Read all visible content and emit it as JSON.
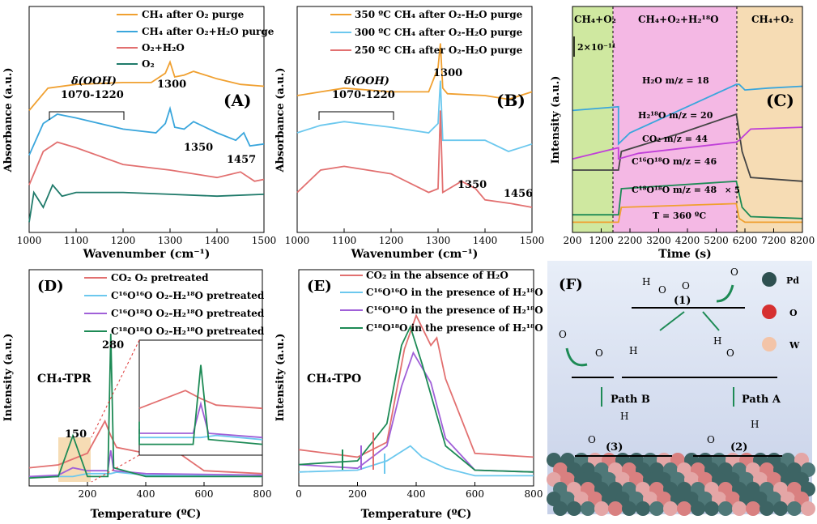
{
  "colors": {
    "orange": "#f0a030",
    "blue": "#3aa6dc",
    "lightblue": "#6cc8ee",
    "red": "#e27070",
    "teal": "#1f7a6a",
    "purple": "#a060d8",
    "green": "#1d8a55",
    "magenta": "#c040d8",
    "dark": "#444444",
    "gasGreen": "#cfe8a0",
    "gasPink": "#f4b8e4",
    "gasTan": "#f6dcb4"
  },
  "panels": {
    "A": {
      "label": "(A)",
      "xlabel": "Wavenumber (cm⁻¹)",
      "ylabel": "Absorbance (a.u.)",
      "xticks": [
        "1000",
        "1100",
        "1200",
        "1300",
        "1400",
        "1500"
      ],
      "legend": [
        "CH₄ after O₂ purge",
        "CH₄ after O₂+H₂O purge",
        "O₂+H₂O",
        "O₂"
      ],
      "annot_delta": "δ(OOH)",
      "annot_range": "1070-1220",
      "peaks": [
        "1300",
        "1350",
        "1457"
      ]
    },
    "B": {
      "label": "(B)",
      "xlabel": "Wavenumber (cm⁻¹)",
      "ylabel": "Absorbance (a.u.)",
      "xticks": [
        "1000",
        "1100",
        "1200",
        "1300",
        "1400",
        "1500"
      ],
      "legend": [
        "350 ºC CH₄ after O₂-H₂O purge",
        "300 ºC CH₄ after O₂-H₂O purge",
        "250 ºC CH₄ after O₂-H₂O purge"
      ],
      "annot_delta": "δ(OOH)",
      "annot_range": "1070-1220",
      "peaks": [
        "1300",
        "1350",
        "1456"
      ]
    },
    "C": {
      "label": "(C)",
      "xlabel": "Time (s)",
      "ylabel": "Intensity (a.u.)",
      "xticks": [
        "200",
        "1200",
        "2200",
        "3200",
        "4200",
        "5200",
        "6200",
        "7200",
        "8200"
      ],
      "regions": [
        "CH₄+O₂",
        "CH₄+O₂+H₂¹⁸O",
        "CH₄+O₂"
      ],
      "scalebar": "2×10⁻¹¹",
      "traces": [
        "H₂O m/z = 18",
        "H₂¹⁸O m/z = 20",
        "CO₂ m/z = 44",
        "C¹⁶O¹⁸O m/z = 46",
        "C¹⁸O¹⁸O m/z = 48"
      ],
      "multiplier": "× 5",
      "temperature": "T = 360 ºC"
    },
    "D": {
      "label": "(D)",
      "xlabel": "Temperature (ºC)",
      "ylabel": "Intensity (a.u.)",
      "xticks": [
        "200",
        "400",
        "600",
        "800"
      ],
      "legend": [
        "CO₂ O₂ pretreated",
        "C¹⁶O¹⁶O O₂-H₂¹⁸O pretreated",
        "C¹⁶O¹⁸O O₂-H₂¹⁸O pretreated",
        "C¹⁸O¹⁸O O₂-H₂¹⁸O pretreated"
      ],
      "title": "CH₄-TPR",
      "peaks": [
        "280",
        "150"
      ]
    },
    "E": {
      "label": "(E)",
      "xlabel": "Temperature (ºC)",
      "ylabel": "Intensity (a.u.)",
      "xticks": [
        "0",
        "200",
        "400",
        "600",
        "800"
      ],
      "legend": [
        "CO₂ in the absence of H₂O",
        "C¹⁶O¹⁶O in the presence of H₂¹⁸O",
        "C¹⁶O¹⁸O in the presence of H₂¹⁸O",
        "C¹⁸O¹⁸O in the presence of H₂¹⁸O"
      ],
      "title": "CH₄-TPO"
    },
    "F": {
      "label": "(F)",
      "legend": [
        "Pd",
        "O",
        "W"
      ],
      "steps": [
        "(1)",
        "(2)",
        "(3)"
      ],
      "paths": [
        "Path B",
        "Path A"
      ],
      "atomH": "H",
      "atomO": "O"
    }
  },
  "chart_data": [
    {
      "type": "line",
      "title": "(A)",
      "xlabel": "Wavenumber (cm-1)",
      "ylabel": "Absorbance (a.u.)",
      "xlim": [
        1000,
        1500
      ],
      "series": [
        {
          "name": "CH4 after O2 purge",
          "x": [
            1000,
            1040,
            1100,
            1200,
            1260,
            1290,
            1300,
            1310,
            1330,
            1350,
            1400,
            1450,
            1500
          ],
          "y": [
            0.62,
            0.74,
            0.76,
            0.77,
            0.77,
            0.82,
            0.88,
            0.8,
            0.81,
            0.83,
            0.79,
            0.76,
            0.75
          ]
        },
        {
          "name": "CH4 after O2+H2O purge",
          "x": [
            1000,
            1030,
            1060,
            1100,
            1200,
            1270,
            1290,
            1300,
            1310,
            1330,
            1350,
            1400,
            1440,
            1457,
            1470,
            1500
          ],
          "y": [
            0.38,
            0.55,
            0.6,
            0.58,
            0.52,
            0.5,
            0.55,
            0.63,
            0.53,
            0.52,
            0.56,
            0.5,
            0.46,
            0.5,
            0.43,
            0.44
          ]
        },
        {
          "name": "O2+H2O",
          "x": [
            1000,
            1030,
            1060,
            1100,
            1200,
            1300,
            1400,
            1450,
            1480,
            1500
          ],
          "y": [
            0.22,
            0.4,
            0.45,
            0.42,
            0.33,
            0.3,
            0.26,
            0.29,
            0.24,
            0.25
          ]
        },
        {
          "name": "O2",
          "x": [
            1000,
            1010,
            1030,
            1050,
            1070,
            1100,
            1200,
            1300,
            1400,
            1500
          ],
          "y": [
            0.02,
            0.18,
            0.1,
            0.22,
            0.16,
            0.18,
            0.18,
            0.17,
            0.16,
            0.17
          ]
        }
      ]
    },
    {
      "type": "line",
      "title": "(B)",
      "xlabel": "Wavenumber (cm-1)",
      "ylabel": "Absorbance (a.u.)",
      "xlim": [
        1000,
        1500
      ],
      "series": [
        {
          "name": "350 C CH4 after O2-H2O purge",
          "x": [
            1000,
            1050,
            1100,
            1200,
            1280,
            1300,
            1305,
            1310,
            1320,
            1400,
            1450,
            1500
          ],
          "y": [
            0.7,
            0.72,
            0.74,
            0.72,
            0.72,
            0.85,
            0.98,
            0.74,
            0.71,
            0.7,
            0.68,
            0.72
          ]
        },
        {
          "name": "300 C CH4 after O2-H2O purge",
          "x": [
            1000,
            1050,
            1100,
            1200,
            1280,
            1300,
            1305,
            1310,
            1350,
            1400,
            1450,
            1500
          ],
          "y": [
            0.5,
            0.54,
            0.56,
            0.53,
            0.5,
            0.55,
            0.78,
            0.46,
            0.46,
            0.46,
            0.4,
            0.44
          ]
        },
        {
          "name": "250 C CH4 after O2-H2O purge",
          "x": [
            1000,
            1050,
            1100,
            1200,
            1280,
            1300,
            1305,
            1310,
            1350,
            1380,
            1400,
            1456,
            1500
          ],
          "y": [
            0.18,
            0.3,
            0.32,
            0.28,
            0.18,
            0.2,
            0.62,
            0.18,
            0.24,
            0.2,
            0.14,
            0.12,
            0.1
          ]
        }
      ]
    },
    {
      "type": "line",
      "title": "(C)",
      "xlabel": "Time (s)",
      "ylabel": "Intensity (a.u.)",
      "xlim": [
        200,
        8200
      ],
      "series": [
        {
          "name": "H2O m/z = 18",
          "x": [
            200,
            1800,
            1800,
            2200,
            5900,
            6000,
            6200,
            7000,
            8200
          ],
          "y": [
            0.62,
            0.64,
            0.44,
            0.5,
            0.76,
            0.76,
            0.73,
            0.74,
            0.75
          ]
        },
        {
          "name": "H2(18)O m/z = 20",
          "x": [
            200,
            1800,
            1900,
            4000,
            5900,
            6100,
            6400,
            8200
          ],
          "y": [
            0.3,
            0.3,
            0.4,
            0.5,
            0.6,
            0.4,
            0.26,
            0.24
          ]
        },
        {
          "name": "CO2 m/z = 44",
          "x": [
            200,
            1800,
            1800,
            2500,
            5900,
            6000,
            6400,
            8200
          ],
          "y": [
            0.36,
            0.42,
            0.36,
            0.39,
            0.45,
            0.46,
            0.52,
            0.53
          ]
        },
        {
          "name": "C16O18O m/z = 46",
          "x": [
            200,
            1800,
            1900,
            5900,
            6100,
            6400,
            8200
          ],
          "y": [
            0.06,
            0.06,
            0.2,
            0.24,
            0.1,
            0.05,
            0.04
          ]
        },
        {
          "name": "C18O18O m/z = 48",
          "x": [
            200,
            1800,
            1900,
            5900,
            6000,
            6200,
            8200
          ],
          "y": [
            0.02,
            0.02,
            0.1,
            0.12,
            0.04,
            0.02,
            0.02
          ]
        }
      ]
    },
    {
      "type": "line",
      "title": "(D) CH4-TPR",
      "xlabel": "Temperature (C)",
      "ylabel": "Intensity (a.u.)",
      "xlim": [
        0,
        800
      ],
      "series": [
        {
          "name": "CO2 O2 pretreated",
          "x": [
            0,
            100,
            200,
            260,
            280,
            300,
            400,
            500,
            600,
            800
          ],
          "y": [
            0.08,
            0.1,
            0.18,
            0.4,
            0.3,
            0.22,
            0.18,
            0.2,
            0.06,
            0.04
          ]
        },
        {
          "name": "C16O16O O2-H2(18)O pretreated",
          "x": [
            0,
            100,
            150,
            200,
            280,
            300,
            400,
            800
          ],
          "y": [
            0.02,
            0.02,
            0.02,
            0.04,
            0.04,
            0.05,
            0.03,
            0.02
          ]
        },
        {
          "name": "C16O18O O2-H2(18)O pretreated",
          "x": [
            0,
            100,
            150,
            200,
            270,
            280,
            290,
            400,
            800
          ],
          "y": [
            0.02,
            0.03,
            0.08,
            0.06,
            0.06,
            0.2,
            0.06,
            0.04,
            0.03
          ]
        },
        {
          "name": "C18O18O O2-H2(18)O pretreated",
          "x": [
            0,
            100,
            150,
            200,
            270,
            280,
            290,
            400,
            800
          ],
          "y": [
            0.01,
            0.02,
            0.3,
            0.02,
            0.02,
            1.0,
            0.08,
            0.02,
            0.02
          ]
        }
      ]
    },
    {
      "type": "line",
      "title": "(E) CH4-TPO",
      "xlabel": "Temperature (C)",
      "ylabel": "Intensity (a.u.)",
      "xlim": [
        0,
        800
      ],
      "series": [
        {
          "name": "CO2 in the absence of H2O",
          "x": [
            0,
            200,
            300,
            360,
            400,
            450,
            470,
            500,
            600,
            800
          ],
          "y": [
            0.16,
            0.12,
            0.2,
            0.7,
            0.88,
            0.72,
            0.76,
            0.54,
            0.14,
            0.12
          ]
        },
        {
          "name": "C16O16O in the presence of H2(18)O",
          "x": [
            0,
            200,
            300,
            380,
            420,
            500,
            600,
            800
          ],
          "y": [
            0.04,
            0.05,
            0.1,
            0.18,
            0.12,
            0.06,
            0.02,
            0.02
          ]
        },
        {
          "name": "C16O18O in the presence of H2(18)O",
          "x": [
            0,
            200,
            300,
            350,
            390,
            450,
            500,
            600,
            800
          ],
          "y": [
            0.08,
            0.06,
            0.18,
            0.5,
            0.68,
            0.52,
            0.22,
            0.05,
            0.04
          ]
        },
        {
          "name": "C18O18O in the presence of H2(18)O",
          "x": [
            0,
            200,
            300,
            350,
            380,
            420,
            500,
            600,
            800
          ],
          "y": [
            0.08,
            0.1,
            0.3,
            0.72,
            0.82,
            0.62,
            0.18,
            0.05,
            0.04
          ]
        }
      ]
    }
  ]
}
